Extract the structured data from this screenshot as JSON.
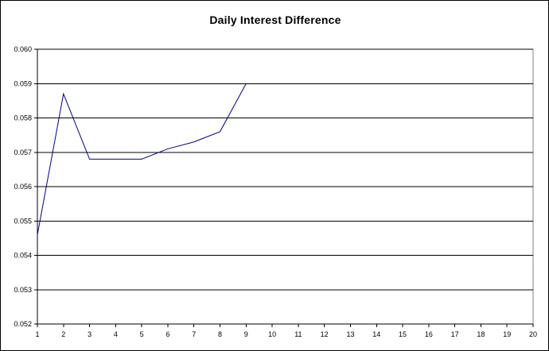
{
  "chart_data": {
    "type": "line",
    "title": "Daily Interest Difference",
    "xlabel": "",
    "ylabel": "",
    "x": [
      1,
      2,
      3,
      4,
      5,
      6,
      7,
      8,
      9
    ],
    "series": [
      {
        "name": "",
        "values": [
          0.0546,
          0.0587,
          0.0568,
          0.0568,
          0.0568,
          0.0571,
          0.0573,
          0.0576,
          0.059
        ],
        "color": "#000080"
      }
    ],
    "xlim": [
      1,
      20
    ],
    "ylim": [
      0.052,
      0.06
    ],
    "xticks": [
      "1",
      "2",
      "3",
      "4",
      "5",
      "6",
      "7",
      "8",
      "9",
      "10",
      "11",
      "12",
      "13",
      "14",
      "15",
      "16",
      "17",
      "18",
      "19",
      "20"
    ],
    "yticks": [
      "0.052",
      "0.053",
      "0.054",
      "0.055",
      "0.056",
      "0.057",
      "0.058",
      "0.059",
      "0.060"
    ],
    "grid": "horizontal",
    "legend": "none"
  }
}
